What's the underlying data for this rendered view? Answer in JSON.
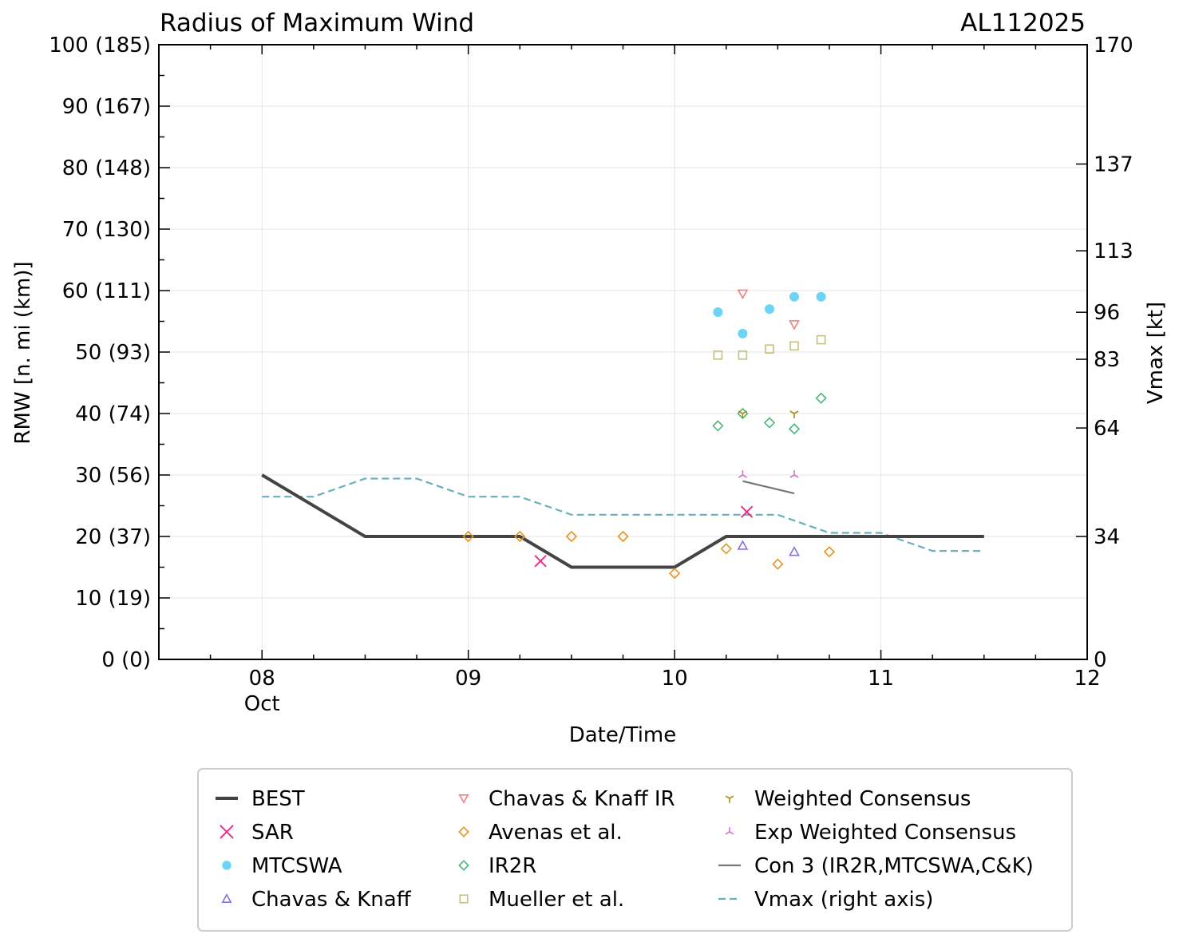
{
  "chart_data": {
    "type": "line",
    "title": "Radius of Maximum Wind",
    "storm_id": "AL112025",
    "xlabel": "Date/Time",
    "ylabel": "RMW [n. mi (km)]",
    "y2label": "Vmax [kt]",
    "x_unit": "days since 08 Oct 00Z",
    "xlim": [
      -0.5,
      4
    ],
    "ylim": [
      0,
      100
    ],
    "y2lim": [
      0,
      170
    ],
    "grid": true,
    "legend_position": "bottom",
    "x_ticks": [
      {
        "x": 0,
        "label": "08",
        "sublabel": "Oct"
      },
      {
        "x": 1,
        "label": "09",
        "sublabel": ""
      },
      {
        "x": 2,
        "label": "10",
        "sublabel": ""
      },
      {
        "x": 3,
        "label": "11",
        "sublabel": ""
      },
      {
        "x": 4,
        "label": "12",
        "sublabel": ""
      }
    ],
    "y_ticks": [
      {
        "y": 0,
        "label": "0 (0)"
      },
      {
        "y": 10,
        "label": "10 (19)"
      },
      {
        "y": 20,
        "label": "20 (37)"
      },
      {
        "y": 30,
        "label": "30 (56)"
      },
      {
        "y": 40,
        "label": "40 (74)"
      },
      {
        "y": 50,
        "label": "50 (93)"
      },
      {
        "y": 60,
        "label": "60 (111)"
      },
      {
        "y": 70,
        "label": "70 (130)"
      },
      {
        "y": 80,
        "label": "80 (148)"
      },
      {
        "y": 90,
        "label": "90 (167)"
      },
      {
        "y": 100,
        "label": "100 (185)"
      }
    ],
    "y2_ticks": [
      {
        "v": 0,
        "label": "0"
      },
      {
        "v": 34,
        "label": "34"
      },
      {
        "v": 64,
        "label": "64"
      },
      {
        "v": 83,
        "label": "83"
      },
      {
        "v": 96,
        "label": "96"
      },
      {
        "v": 113,
        "label": "113"
      },
      {
        "v": 137,
        "label": "137"
      },
      {
        "v": 170,
        "label": "170"
      }
    ],
    "series": [
      {
        "name": "BEST",
        "kind": "line",
        "color": "#444444",
        "x": [
          0,
          0.5,
          1,
          1.25,
          1.5,
          2,
          2.25,
          2.5,
          3,
          3.5
        ],
        "y": [
          30,
          20,
          20,
          20,
          15,
          15,
          20,
          20,
          20,
          20
        ]
      },
      {
        "name": "SAR",
        "kind": "marker",
        "marker": "x",
        "color": "#e8308c",
        "x": [
          1.35,
          2.35
        ],
        "y": [
          16,
          24
        ]
      },
      {
        "name": "MTCSWA",
        "kind": "marker",
        "marker": "circle",
        "color": "#6cd4f5",
        "x": [
          2.21,
          2.33,
          2.46,
          2.58,
          2.71
        ],
        "y": [
          56.5,
          53,
          57,
          59,
          59
        ]
      },
      {
        "name": "Chavas & Knaff",
        "kind": "marker",
        "marker": "triangle-up",
        "color": "#8a70e0",
        "x": [
          2.33,
          2.58
        ],
        "y": [
          18.5,
          17.5
        ]
      },
      {
        "name": "Chavas & Knaff IR",
        "kind": "marker",
        "marker": "triangle-down",
        "color": "#f08080",
        "x": [
          2.33,
          2.58
        ],
        "y": [
          59.5,
          54.5
        ]
      },
      {
        "name": "Avenas et al.",
        "kind": "marker",
        "marker": "diamond",
        "color": "#e6961e",
        "x": [
          1,
          1.25,
          1.5,
          1.75,
          2,
          2.25,
          2.5,
          2.75
        ],
        "y": [
          20,
          20,
          20,
          20,
          14,
          18,
          15.5,
          17.5
        ]
      },
      {
        "name": "IR2R",
        "kind": "marker",
        "marker": "diamond",
        "color": "#4bb87a",
        "x": [
          2.21,
          2.33,
          2.46,
          2.58,
          2.71
        ],
        "y": [
          38,
          40,
          38.5,
          37.5,
          42.5
        ]
      },
      {
        "name": "Mueller et al.",
        "kind": "marker",
        "marker": "square",
        "color": "#c8c080",
        "x": [
          2.21,
          2.33,
          2.46,
          2.58,
          2.71
        ],
        "y": [
          49.5,
          49.5,
          50.5,
          51,
          52
        ]
      },
      {
        "name": "Weighted Consensus",
        "kind": "marker",
        "marker": "tri-down",
        "color": "#b8860b",
        "x": [
          2.33,
          2.58
        ],
        "y": [
          40,
          40
        ]
      },
      {
        "name": "Exp Weighted Consensus",
        "kind": "marker",
        "marker": "tri-up",
        "color": "#da70d6",
        "x": [
          2.33,
          2.58
        ],
        "y": [
          30,
          30
        ]
      },
      {
        "name": "Con 3 (IR2R,MTCSWA,C&K)",
        "kind": "line",
        "color": "#777777",
        "x": [
          2.33,
          2.58
        ],
        "y": [
          29,
          27
        ]
      },
      {
        "name": "Vmax (right axis)",
        "kind": "line",
        "axis": "right",
        "dashed": true,
        "color": "#6aaec0",
        "x": [
          0,
          0.25,
          0.5,
          0.75,
          1,
          1.25,
          1.5,
          1.75,
          2,
          2.25,
          2.5,
          2.75,
          3,
          3.25,
          3.5
        ],
        "y": [
          45,
          45,
          50,
          50,
          45,
          45,
          40,
          40,
          40,
          40,
          40,
          35,
          35,
          30,
          30
        ]
      }
    ],
    "legend_columns": [
      [
        "BEST",
        "SAR",
        "MTCSWA",
        "Chavas & Knaff"
      ],
      [
        "Chavas & Knaff IR",
        "Avenas et al.",
        "IR2R",
        "Mueller et al."
      ],
      [
        "Weighted Consensus",
        "Exp Weighted Consensus",
        "Con 3 (IR2R,MTCSWA,C&K)",
        "Vmax (right axis)"
      ]
    ]
  }
}
